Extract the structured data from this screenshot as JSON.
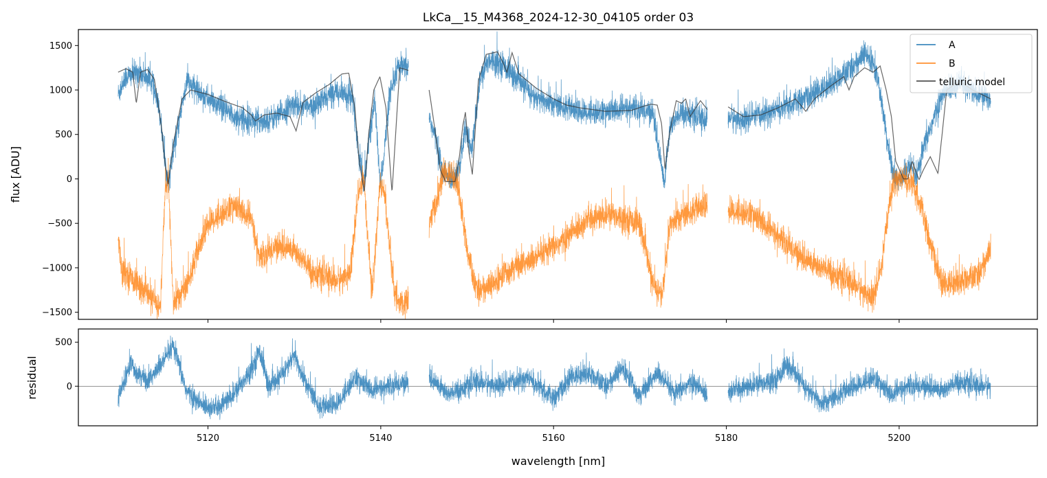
{
  "chart_data": [
    {
      "type": "line",
      "title": "LkCa__15_M4368_2024-12-30_04105  order 03",
      "xlabel": "",
      "ylabel": "flux [ADU]",
      "xlim": [
        5105,
        5216
      ],
      "ylim": [
        -1580,
        1680
      ],
      "y_ticks": [
        -1500,
        -1000,
        -500,
        0,
        500,
        1000,
        1500
      ],
      "y_tick_labels": [
        "−1500",
        "−1000",
        "−500",
        "0",
        "500",
        "1000",
        "1500"
      ],
      "x_ticks": [
        5120,
        5140,
        5160,
        5180,
        5200
      ],
      "legend_position": "top-right",
      "legend": [
        "A",
        "B",
        "telluric model"
      ],
      "segments": [
        [
          5109.6,
          5143.2
        ],
        [
          5145.6,
          5177.8
        ],
        [
          5180.2,
          5210.6
        ]
      ],
      "series": [
        {
          "name": "A",
          "color": "#1f77b4",
          "noise": 130,
          "x": [
            5109.6,
            5110.5,
            5112,
            5113.5,
            5114.5,
            5115,
            5115.4,
            5116.2,
            5117.5,
            5120,
            5123,
            5126,
            5128,
            5130,
            5132,
            5135,
            5136.8,
            5137.4,
            5138,
            5139.3,
            5139.9,
            5140.4,
            5141,
            5142,
            5143.2,
            5145.6,
            5146.5,
            5147.2,
            5148.3,
            5149.2,
            5149.8,
            5150.5,
            5151.5,
            5152.5,
            5154,
            5156,
            5158,
            5160,
            5163,
            5166,
            5169,
            5171.5,
            5172.4,
            5172.8,
            5173.5,
            5175,
            5177.8,
            5180.2,
            5182,
            5185,
            5188,
            5191,
            5194,
            5196,
            5197,
            5198,
            5198.8,
            5199.5,
            5200.3,
            5201.2,
            5202,
            5203,
            5205,
            5207,
            5209,
            5210.6
          ],
          "y": [
            950,
            1150,
            1200,
            1100,
            700,
            200,
            -50,
            400,
            1100,
            900,
            700,
            650,
            700,
            850,
            800,
            1000,
            900,
            300,
            -50,
            900,
            -50,
            300,
            900,
            1250,
            1250,
            700,
            400,
            50,
            0,
            150,
            600,
            300,
            1100,
            1350,
            1300,
            1100,
            900,
            850,
            750,
            750,
            800,
            750,
            200,
            -50,
            600,
            750,
            650,
            700,
            650,
            750,
            850,
            1000,
            1200,
            1400,
            1300,
            900,
            300,
            0,
            0,
            150,
            0,
            400,
            950,
            1100,
            950,
            900
          ]
        },
        {
          "name": "B",
          "color": "#ff7f0e",
          "noise": 140,
          "x": [
            5109.6,
            5110,
            5112,
            5113.5,
            5114.5,
            5115,
            5115.4,
            5116,
            5117.5,
            5120,
            5123,
            5125,
            5126,
            5128,
            5130,
            5132,
            5135,
            5136.5,
            5137.3,
            5138,
            5139,
            5139.9,
            5140.5,
            5141.5,
            5142.5,
            5143.2,
            5145.6,
            5146.5,
            5147.2,
            5148.3,
            5149,
            5150,
            5151,
            5153,
            5155,
            5158,
            5161,
            5164,
            5167,
            5170,
            5171.5,
            5172.6,
            5173.5,
            5175,
            5177.8,
            5180.2,
            5183,
            5186,
            5189,
            5192,
            5195,
            5197,
            5198,
            5198.8,
            5199.5,
            5200.5,
            5201.5,
            5202.5,
            5203.5,
            5205,
            5207,
            5209,
            5210.6
          ],
          "y": [
            -650,
            -1000,
            -1200,
            -1350,
            -1450,
            -200,
            0,
            -1400,
            -1200,
            -500,
            -300,
            -450,
            -900,
            -750,
            -800,
            -1050,
            -1150,
            -1050,
            -250,
            0,
            -1300,
            -50,
            -200,
            -1250,
            -1450,
            -1350,
            -500,
            -250,
            50,
            50,
            -100,
            -800,
            -1250,
            -1200,
            -1000,
            -900,
            -700,
            -450,
            -400,
            -500,
            -1200,
            -1300,
            -500,
            -400,
            -300,
            -350,
            -400,
            -650,
            -900,
            -1050,
            -1200,
            -1350,
            -1000,
            -300,
            0,
            0,
            -50,
            -300,
            -700,
            -1200,
            -1150,
            -1100,
            -800
          ]
        },
        {
          "name": "telluric model",
          "color": "#333333",
          "x": [
            5109.6,
            5110.5,
            5111.3,
            5111.7,
            5112.2,
            5113,
            5113.8,
            5114.6,
            5115.0,
            5115.4,
            5116.0,
            5117.0,
            5118.0,
            5120,
            5122,
            5124,
            5125.0,
            5125.5,
            5126.5,
            5128,
            5129.5,
            5130.2,
            5131,
            5132.5,
            5134,
            5135.5,
            5136.3,
            5137.0,
            5137.5,
            5138.1,
            5138.6,
            5139.2,
            5139.9,
            5140.6,
            5141.3,
            5142.2,
            5143.2,
            5145.6,
            5146.2,
            5146.9,
            5147.5,
            5148.6,
            5149.1,
            5149.5,
            5149.8,
            5150.2,
            5150.6,
            5151.3,
            5152.2,
            5153.5,
            5154.2,
            5154.6,
            5155.2,
            5156,
            5158,
            5160,
            5161.5,
            5163,
            5166,
            5169,
            5170.5,
            5171.3,
            5172.0,
            5172.5,
            5172.9,
            5173.4,
            5174.2,
            5174.8,
            5175.3,
            5175.8,
            5177,
            5177.8,
            5180.2,
            5182,
            5184,
            5186,
            5188,
            5189.2,
            5190.2,
            5192,
            5193.6,
            5194.2,
            5194.8,
            5196,
            5197,
            5197.8,
            5198.5,
            5199.1,
            5199.6,
            5200.5,
            5201.0,
            5201.5,
            5202.3,
            5202.8,
            5203.6,
            5204.5,
            5205.5,
            5207,
            5208.5,
            5210.6
          ],
          "y": [
            1200,
            1240,
            1200,
            850,
            1200,
            1230,
            1120,
            600,
            200,
            -60,
            400,
            900,
            1000,
            950,
            870,
            800,
            720,
            650,
            720,
            740,
            700,
            540,
            860,
            970,
            1060,
            1180,
            1190,
            800,
            200,
            -150,
            500,
            1000,
            1150,
            800,
            -150,
            1250,
            1220,
            1000,
            600,
            100,
            -30,
            -30,
            250,
            600,
            750,
            300,
            50,
            1100,
            1400,
            1430,
            1300,
            1200,
            1420,
            1180,
            1020,
            900,
            830,
            800,
            760,
            770,
            820,
            840,
            830,
            620,
            100,
            500,
            880,
            850,
            900,
            700,
            880,
            780,
            810,
            700,
            720,
            800,
            900,
            760,
            900,
            1040,
            1150,
            1000,
            1150,
            1250,
            1200,
            1270,
            1000,
            700,
            200,
            0,
            0,
            200,
            -10,
            100,
            250,
            60,
            1000,
            1100,
            1000,
            900
          ]
        }
      ]
    },
    {
      "type": "line",
      "title": "",
      "xlabel": "wavelength [nm]",
      "ylabel": "residual",
      "xlim": [
        5105,
        5216
      ],
      "ylim": [
        -450,
        650
      ],
      "y_ticks": [
        0,
        500
      ],
      "y_tick_labels": [
        "0",
        "500"
      ],
      "x_ticks": [
        5120,
        5140,
        5160,
        5180,
        5200
      ],
      "x_tick_labels": [
        "5120",
        "5140",
        "5160",
        "5180",
        "5200"
      ],
      "reference_line": 0,
      "segments": [
        [
          5109.6,
          5143.2
        ],
        [
          5145.6,
          5177.8
        ],
        [
          5180.2,
          5210.6
        ]
      ],
      "series": [
        {
          "name": "",
          "color": "#1f77b4",
          "noise": 110,
          "x": [
            5109.6,
            5111,
            5113,
            5115,
            5116,
            5117.5,
            5119,
            5121,
            5123,
            5125,
            5126,
            5127,
            5128,
            5130,
            5131,
            5133,
            5135,
            5137,
            5139,
            5141,
            5143.2,
            5145.6,
            5148,
            5151,
            5154,
            5157,
            5160,
            5162,
            5164,
            5166,
            5168,
            5170,
            5172,
            5174,
            5176,
            5177.8,
            5180.2,
            5183,
            5186,
            5187,
            5189,
            5191,
            5193,
            5195,
            5197,
            5199,
            5201,
            5203,
            5205,
            5207,
            5209,
            5210.6
          ],
          "y": [
            -150,
            250,
            50,
            300,
            450,
            -50,
            -200,
            -250,
            -100,
            200,
            400,
            0,
            50,
            350,
            100,
            -250,
            -200,
            100,
            -50,
            0,
            50,
            100,
            -100,
            50,
            0,
            100,
            -150,
            100,
            150,
            0,
            200,
            -100,
            150,
            -100,
            50,
            -100,
            -50,
            0,
            100,
            250,
            0,
            -200,
            -100,
            0,
            100,
            -100,
            0,
            0,
            -50,
            50,
            0,
            0
          ]
        }
      ]
    }
  ]
}
